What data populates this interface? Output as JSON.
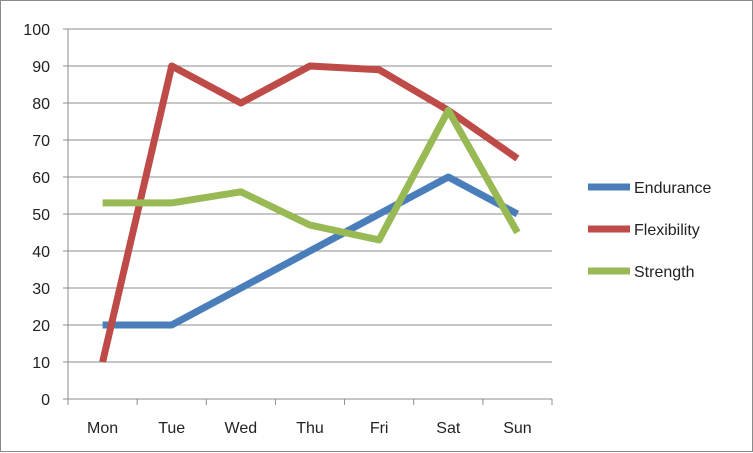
{
  "chart_data": {
    "type": "line",
    "title": "",
    "xlabel": "",
    "ylabel": "",
    "categories": [
      "Mon",
      "Tue",
      "Wed",
      "Thu",
      "Fri",
      "Sat",
      "Sun"
    ],
    "ylim": [
      0,
      100
    ],
    "yticks": [
      0,
      10,
      20,
      30,
      40,
      50,
      60,
      70,
      80,
      90,
      100
    ],
    "grid": true,
    "legend_position": "right",
    "series": [
      {
        "name": "Endurance",
        "color": "#4a7ebb",
        "values": [
          20,
          20,
          30,
          40,
          50,
          60,
          50
        ]
      },
      {
        "name": "Flexibility",
        "color": "#be4b48",
        "values": [
          10,
          90,
          80,
          90,
          89,
          78,
          65
        ]
      },
      {
        "name": "Strength",
        "color": "#98b954",
        "values": [
          53,
          53,
          56,
          47,
          43,
          78,
          45
        ]
      }
    ]
  }
}
